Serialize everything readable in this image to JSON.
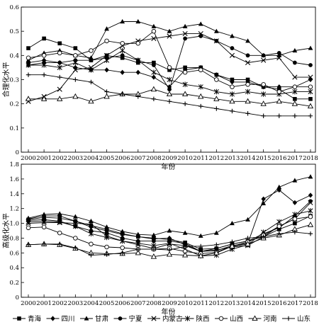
{
  "legend": {
    "items": [
      "青海",
      "四川",
      "甘肃",
      "宁夏",
      "内蒙古",
      "陕西",
      "山西",
      "河南",
      "山东"
    ]
  },
  "series_styles": [
    {
      "name": "青海",
      "marker": "square"
    },
    {
      "name": "四川",
      "marker": "diamond"
    },
    {
      "name": "甘肃",
      "marker": "triangle"
    },
    {
      "name": "宁夏",
      "marker": "circle"
    },
    {
      "name": "内蒙古",
      "marker": "x"
    },
    {
      "name": "陕西",
      "marker": "asterisk"
    },
    {
      "name": "山西",
      "marker": "open-circle"
    },
    {
      "name": "河南",
      "marker": "open-triangle"
    },
    {
      "name": "山东",
      "marker": "plus"
    }
  ],
  "chart_data": [
    {
      "type": "line",
      "xlabel": "年份",
      "ylabel": "合理化水平",
      "x": [
        "2000",
        "2001",
        "2002",
        "2003",
        "2004",
        "2005",
        "2006",
        "2007",
        "2008",
        "2009",
        "2010",
        "2011",
        "2012",
        "2013",
        "2014",
        "2015",
        "2016",
        "2017",
        "2018"
      ],
      "ylim": [
        0,
        0.6
      ],
      "yticks": [
        "0",
        "0.1",
        "0.2",
        "0.3",
        "0.4",
        "0.5",
        "0.6"
      ],
      "series": [
        {
          "name": "青海",
          "values": [
            0.43,
            0.47,
            0.45,
            0.43,
            0.38,
            0.4,
            0.39,
            0.37,
            0.37,
            0.34,
            0.35,
            0.35,
            0.32,
            0.3,
            0.3,
            0.27,
            0.26,
            0.22,
            0.22
          ]
        },
        {
          "name": "四川",
          "values": [
            0.37,
            0.38,
            0.37,
            0.35,
            0.34,
            0.34,
            0.33,
            0.33,
            0.31,
            0.27,
            0.34,
            0.35,
            0.32,
            0.29,
            0.29,
            0.27,
            0.27,
            0.27,
            0.3
          ]
        },
        {
          "name": "甘肃",
          "values": [
            0.38,
            0.41,
            0.42,
            0.4,
            0.39,
            0.51,
            0.54,
            0.54,
            0.52,
            0.5,
            0.52,
            0.53,
            0.5,
            0.48,
            0.46,
            0.4,
            0.4,
            0.42,
            0.43
          ]
        },
        {
          "name": "宁夏",
          "values": [
            0.36,
            0.37,
            0.37,
            0.38,
            0.38,
            0.39,
            0.4,
            0.38,
            0.36,
            0.26,
            0.47,
            0.48,
            0.46,
            0.43,
            0.4,
            0.4,
            0.41,
            0.37,
            0.36
          ]
        },
        {
          "name": "内蒙古",
          "values": [
            0.21,
            0.23,
            0.26,
            0.34,
            0.35,
            0.4,
            0.44,
            0.46,
            0.47,
            0.48,
            0.49,
            0.49,
            0.46,
            0.4,
            0.37,
            0.38,
            0.39,
            0.31,
            0.31
          ]
        },
        {
          "name": "陕西",
          "values": [
            0.36,
            0.36,
            0.35,
            0.37,
            0.34,
            0.38,
            0.42,
            0.38,
            0.33,
            0.3,
            0.28,
            0.27,
            0.25,
            0.24,
            0.25,
            0.24,
            0.24,
            0.25,
            0.25
          ]
        },
        {
          "name": "山西",
          "values": [
            0.39,
            0.4,
            0.41,
            0.4,
            0.42,
            0.46,
            0.45,
            0.45,
            0.5,
            0.35,
            0.33,
            0.34,
            0.3,
            0.27,
            0.28,
            0.28,
            0.25,
            0.27,
            0.27
          ]
        },
        {
          "name": "河南",
          "values": [
            0.22,
            0.22,
            0.22,
            0.23,
            0.21,
            0.23,
            0.24,
            0.24,
            0.26,
            0.24,
            0.24,
            0.23,
            0.22,
            0.21,
            0.21,
            0.2,
            0.21,
            0.2,
            0.19
          ]
        },
        {
          "name": "山东",
          "values": [
            0.32,
            0.32,
            0.31,
            0.3,
            0.29,
            0.25,
            0.24,
            0.23,
            0.22,
            0.21,
            0.2,
            0.19,
            0.18,
            0.17,
            0.16,
            0.15,
            0.15,
            0.15,
            0.15
          ]
        }
      ]
    },
    {
      "type": "line",
      "xlabel": "年份",
      "ylabel": "高级化水平",
      "x": [
        "2000",
        "2001",
        "2002",
        "2003",
        "2004",
        "2005",
        "2006",
        "2007",
        "2008",
        "2009",
        "2010",
        "2011",
        "2012",
        "2013",
        "2014",
        "2015",
        "2016",
        "2017",
        "2018"
      ],
      "ylim": [
        0,
        1.8
      ],
      "yticks": [
        "0",
        "0.2",
        "0.4",
        "0.6",
        "0.8",
        "1.0",
        "1.2",
        "1.4",
        "1.6",
        "1.8"
      ],
      "series": [
        {
          "name": "青海",
          "values": [
            1.05,
            1.08,
            1.07,
            1.03,
            0.97,
            0.92,
            0.86,
            0.82,
            0.8,
            0.78,
            0.74,
            0.65,
            0.66,
            0.72,
            0.76,
            0.82,
            0.92,
            1.0,
            1.1
          ]
        },
        {
          "name": "四川",
          "values": [
            1.06,
            1.1,
            1.1,
            1.03,
            0.95,
            0.9,
            0.85,
            0.82,
            0.79,
            0.8,
            0.71,
            0.62,
            0.63,
            0.7,
            0.73,
            1.33,
            1.45,
            1.28,
            1.38
          ]
        },
        {
          "name": "甘肃",
          "values": [
            1.07,
            1.12,
            1.13,
            1.09,
            1.03,
            0.95,
            0.89,
            0.85,
            0.84,
            0.9,
            0.87,
            0.83,
            0.87,
            1.0,
            1.05,
            1.27,
            1.49,
            1.58,
            1.63
          ]
        },
        {
          "name": "宁夏",
          "values": [
            1.04,
            1.05,
            1.03,
            0.96,
            0.9,
            0.87,
            0.8,
            0.76,
            0.76,
            0.76,
            0.73,
            0.62,
            0.66,
            0.72,
            0.76,
            0.86,
            0.94,
            1.1,
            1.3
          ]
        },
        {
          "name": "内蒙古",
          "values": [
            1.0,
            1.01,
            1.01,
            1.0,
            0.99,
            0.83,
            0.76,
            0.71,
            0.66,
            0.72,
            0.7,
            0.62,
            0.64,
            0.68,
            0.7,
            0.82,
            0.96,
            1.06,
            1.28
          ]
        },
        {
          "name": "陕西",
          "values": [
            1.02,
            1.03,
            1.02,
            0.96,
            0.86,
            0.81,
            0.76,
            0.73,
            0.7,
            0.73,
            0.65,
            0.56,
            0.57,
            0.65,
            0.71,
            0.88,
            1.02,
            1.12,
            1.17
          ]
        },
        {
          "name": "山西",
          "values": [
            0.94,
            0.95,
            0.87,
            0.8,
            0.72,
            0.68,
            0.67,
            0.65,
            0.65,
            0.66,
            0.62,
            0.59,
            0.61,
            0.69,
            0.75,
            0.84,
            0.96,
            1.06,
            1.09
          ]
        },
        {
          "name": "河南",
          "values": [
            0.71,
            0.72,
            0.71,
            0.66,
            0.6,
            0.59,
            0.59,
            0.6,
            0.55,
            0.58,
            0.57,
            0.56,
            0.6,
            0.69,
            0.72,
            0.8,
            0.84,
            0.92,
            0.98
          ]
        },
        {
          "name": "山东",
          "values": [
            0.71,
            0.72,
            0.72,
            0.67,
            0.57,
            0.58,
            0.6,
            0.65,
            0.65,
            0.64,
            0.69,
            0.69,
            0.71,
            0.75,
            0.8,
            0.82,
            0.86,
            0.88,
            0.86
          ]
        }
      ]
    }
  ]
}
